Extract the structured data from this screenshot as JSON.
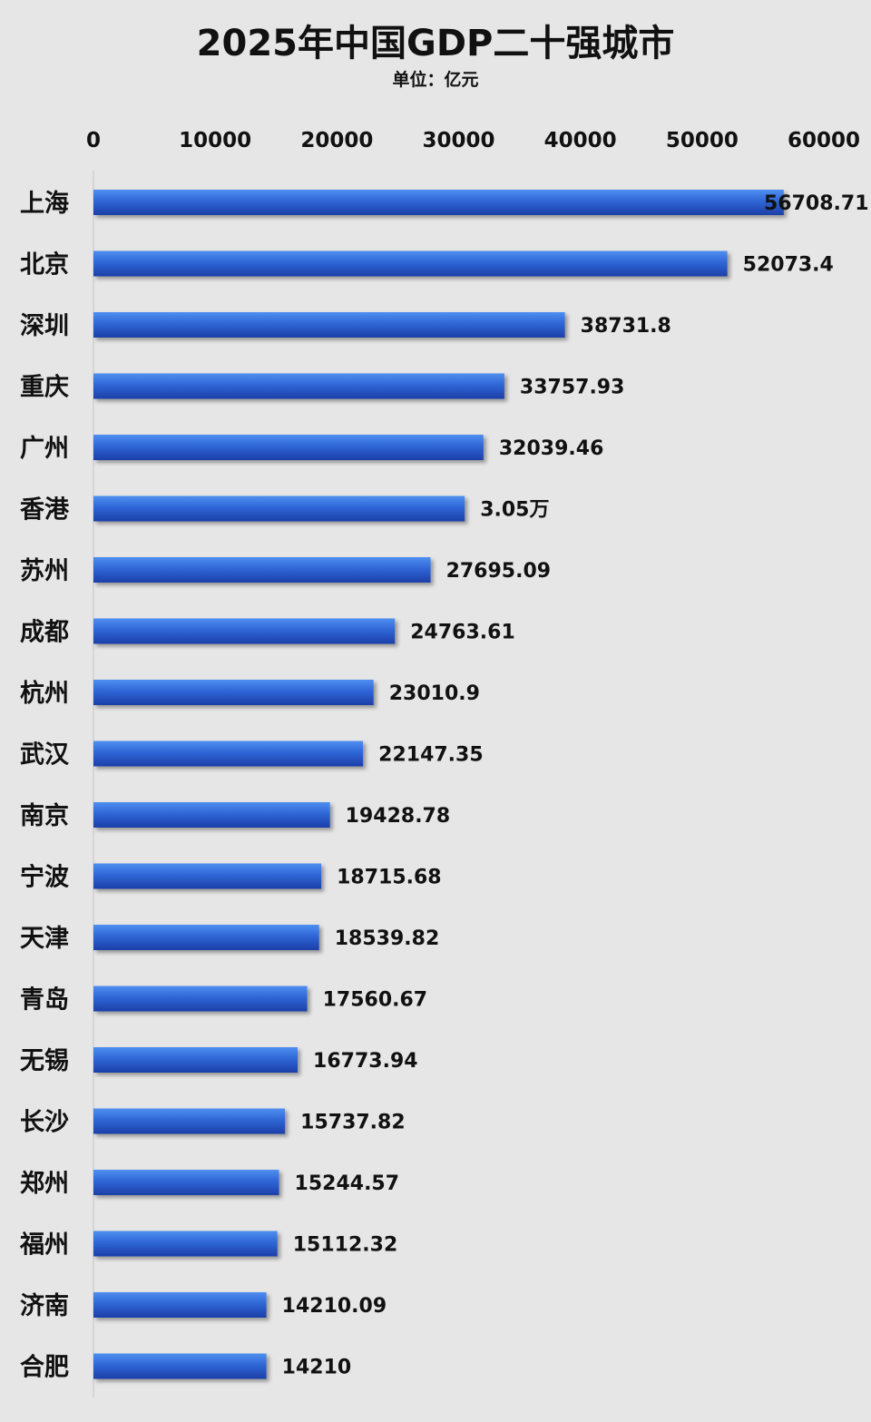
{
  "chart_data": {
    "type": "bar",
    "orientation": "horizontal",
    "title": "2025年中国GDP二十强城市",
    "subtitle": "单位：亿元",
    "categories": [
      "上海",
      "北京",
      "深圳",
      "重庆",
      "广州",
      "香港",
      "苏州",
      "成都",
      "杭州",
      "武汉",
      "南京",
      "宁波",
      "天津",
      "青岛",
      "无锡",
      "长沙",
      "郑州",
      "福州",
      "济南",
      "合肥"
    ],
    "values": [
      56708.71,
      52073.4,
      38731.8,
      33757.93,
      32039.46,
      30500,
      27695.09,
      24763.61,
      23010.9,
      22147.35,
      19428.78,
      18715.68,
      18539.82,
      17560.67,
      16773.94,
      15737.82,
      15244.57,
      15112.32,
      14210.09,
      14210
    ],
    "value_labels": [
      "56708.71",
      "52073.4",
      "38731.8",
      "33757.93",
      "32039.46",
      "3.05万",
      "27695.09",
      "24763.61",
      "23010.9",
      "22147.35",
      "19428.78",
      "18715.68",
      "18539.82",
      "17560.67",
      "16773.94",
      "15737.82",
      "15244.57",
      "15112.32",
      "14210.09",
      "14210"
    ],
    "xlim": [
      0,
      60000
    ],
    "x_ticks": [
      "0",
      "10000",
      "20000",
      "30000",
      "40000",
      "50000",
      "60000"
    ],
    "axis_position": "top",
    "grid": false,
    "legend": "none",
    "colors": {
      "bar_light": "#4f8ff0",
      "bar_mid": "#2f66d6",
      "bar_dark": "#1c3fa8",
      "bar_shadow": "#9a9a9a",
      "background": "#e6e6e6",
      "axis": "#cfcfcf",
      "text": "#111111"
    }
  }
}
